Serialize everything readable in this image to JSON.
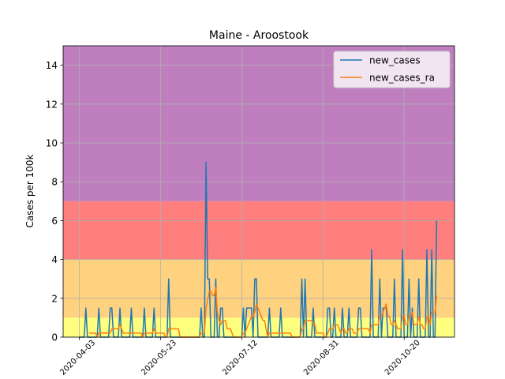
{
  "chart_data": {
    "type": "line",
    "title": "Maine - Aroostook",
    "ylabel": "Cases per 100k",
    "x": [
      "2020-04-03",
      "2020-04-04",
      "2020-04-05",
      "2020-04-06",
      "2020-04-07",
      "2020-04-08",
      "2020-04-09",
      "2020-04-10",
      "2020-04-11",
      "2020-04-12",
      "2020-04-13",
      "2020-04-14",
      "2020-04-15",
      "2020-04-16",
      "2020-04-17",
      "2020-04-18",
      "2020-04-19",
      "2020-04-20",
      "2020-04-21",
      "2020-04-22",
      "2020-04-23",
      "2020-04-24",
      "2020-04-25",
      "2020-04-26",
      "2020-04-27",
      "2020-04-28",
      "2020-04-29",
      "2020-04-30",
      "2020-05-01",
      "2020-05-02",
      "2020-05-03",
      "2020-05-04",
      "2020-05-05",
      "2020-05-06",
      "2020-05-07",
      "2020-05-08",
      "2020-05-09",
      "2020-05-10",
      "2020-05-11",
      "2020-05-12",
      "2020-05-13",
      "2020-05-14",
      "2020-05-15",
      "2020-05-16",
      "2020-05-17",
      "2020-05-18",
      "2020-05-19",
      "2020-05-20",
      "2020-05-21",
      "2020-05-22",
      "2020-05-23",
      "2020-05-24",
      "2020-05-25",
      "2020-05-26",
      "2020-05-27",
      "2020-05-28",
      "2020-05-29",
      "2020-05-30",
      "2020-05-31",
      "2020-06-01",
      "2020-06-02",
      "2020-06-03",
      "2020-06-04",
      "2020-06-05",
      "2020-06-06",
      "2020-06-07",
      "2020-06-08",
      "2020-06-09",
      "2020-06-10",
      "2020-06-11",
      "2020-06-12",
      "2020-06-13",
      "2020-06-14",
      "2020-06-15",
      "2020-06-16",
      "2020-06-17",
      "2020-06-18",
      "2020-06-19",
      "2020-06-20",
      "2020-06-21",
      "2020-06-22",
      "2020-06-23",
      "2020-06-24",
      "2020-06-25",
      "2020-06-26",
      "2020-06-27",
      "2020-06-28",
      "2020-06-29",
      "2020-06-30",
      "2020-07-01",
      "2020-07-02",
      "2020-07-03",
      "2020-07-04",
      "2020-07-05",
      "2020-07-06",
      "2020-07-07",
      "2020-07-08",
      "2020-07-09",
      "2020-07-10",
      "2020-07-11",
      "2020-07-12",
      "2020-07-13",
      "2020-07-14",
      "2020-07-15",
      "2020-07-16",
      "2020-07-17",
      "2020-07-18",
      "2020-07-19",
      "2020-07-20",
      "2020-07-21",
      "2020-07-22",
      "2020-07-23",
      "2020-07-24",
      "2020-07-25",
      "2020-07-26",
      "2020-07-27",
      "2020-07-28",
      "2020-07-29",
      "2020-07-30",
      "2020-07-31",
      "2020-08-01",
      "2020-08-02",
      "2020-08-03",
      "2020-08-04",
      "2020-08-05",
      "2020-08-06",
      "2020-08-07",
      "2020-08-08",
      "2020-08-09",
      "2020-08-10",
      "2020-08-11",
      "2020-08-12",
      "2020-08-13",
      "2020-08-14",
      "2020-08-15",
      "2020-08-16",
      "2020-08-17",
      "2020-08-18",
      "2020-08-19",
      "2020-08-20",
      "2020-08-21",
      "2020-08-22",
      "2020-08-23",
      "2020-08-24",
      "2020-08-25",
      "2020-08-26",
      "2020-08-27",
      "2020-08-28",
      "2020-08-29",
      "2020-08-30",
      "2020-08-31",
      "2020-09-01",
      "2020-09-02",
      "2020-09-03",
      "2020-09-04",
      "2020-09-05",
      "2020-09-06",
      "2020-09-07",
      "2020-09-08",
      "2020-09-09",
      "2020-09-10",
      "2020-09-11",
      "2020-09-12",
      "2020-09-13",
      "2020-09-14",
      "2020-09-15",
      "2020-09-16",
      "2020-09-17",
      "2020-09-18",
      "2020-09-19",
      "2020-09-20",
      "2020-09-21",
      "2020-09-22",
      "2020-09-23",
      "2020-09-24",
      "2020-09-25",
      "2020-09-26",
      "2020-09-27",
      "2020-09-28",
      "2020-09-29",
      "2020-09-30",
      "2020-10-01",
      "2020-10-02",
      "2020-10-03",
      "2020-10-04",
      "2020-10-05",
      "2020-10-06",
      "2020-10-07",
      "2020-10-08",
      "2020-10-09",
      "2020-10-10",
      "2020-10-11",
      "2020-10-12",
      "2020-10-13",
      "2020-10-14",
      "2020-10-15",
      "2020-10-16",
      "2020-10-17",
      "2020-10-18",
      "2020-10-19",
      "2020-10-20",
      "2020-10-21",
      "2020-10-22",
      "2020-10-23",
      "2020-10-24",
      "2020-10-25",
      "2020-10-26",
      "2020-10-27",
      "2020-10-28",
      "2020-10-29",
      "2020-10-30",
      "2020-10-31",
      "2020-11-01",
      "2020-11-02",
      "2020-11-03",
      "2020-11-04",
      "2020-11-05",
      "2020-11-06",
      "2020-11-07",
      "2020-11-08",
      "2020-11-09"
    ],
    "series": [
      {
        "name": "new_cases",
        "color": "#1f77b4",
        "values": [
          0,
          0,
          0,
          0,
          1.5,
          0,
          0,
          0,
          0,
          0,
          0,
          0,
          1.5,
          0,
          0,
          0,
          0,
          0,
          0,
          1.5,
          1.5,
          0,
          0,
          0,
          0,
          1.5,
          0,
          0,
          0,
          0,
          0,
          0,
          1.5,
          0,
          0,
          0,
          0,
          0,
          0,
          0,
          1.5,
          0,
          0,
          0,
          0,
          0,
          1.5,
          0,
          0,
          0,
          0,
          0,
          0,
          0,
          0,
          3,
          0,
          0,
          0,
          0,
          0,
          0,
          0,
          0,
          0,
          0,
          0,
          0,
          0,
          0,
          0,
          0,
          0,
          0,
          0,
          1.5,
          0,
          0,
          9,
          3,
          3,
          0,
          0,
          0,
          3,
          0,
          0,
          1.5,
          1.5,
          0,
          0,
          0,
          0,
          0,
          0,
          0,
          0,
          0,
          0,
          0,
          0,
          1.5,
          0,
          1.5,
          1.5,
          1.5,
          1.5,
          0,
          3,
          3,
          0,
          0,
          0,
          0,
          0,
          0,
          0,
          1.5,
          0,
          0,
          0,
          0,
          0,
          0,
          1.5,
          0,
          0,
          0,
          0,
          0,
          0,
          0,
          0,
          0,
          0,
          0,
          0,
          3,
          0,
          3,
          0,
          0,
          0,
          0,
          1.5,
          0,
          0,
          0,
          0,
          0,
          0,
          0,
          0,
          1.5,
          1.5,
          0,
          0,
          1.5,
          0,
          0,
          0,
          0,
          1.5,
          0,
          0,
          0,
          1.5,
          0,
          0,
          0,
          0,
          0,
          1.5,
          1.5,
          0,
          0,
          0,
          0,
          0,
          0,
          4.5,
          0,
          0,
          0,
          0,
          3,
          0,
          1.5,
          1.5,
          1.5,
          0,
          0,
          0,
          0,
          3,
          0,
          0,
          0,
          0,
          4.5,
          0,
          0,
          0,
          3,
          0,
          1.5,
          0,
          0,
          0,
          3,
          0,
          0,
          0,
          0,
          4.5,
          0,
          0,
          4.5,
          0,
          0,
          6
        ]
      },
      {
        "name": "new_cases_ra",
        "color": "#ff7f0e",
        "values": [
          null,
          null,
          null,
          null,
          null,
          null,
          0.21,
          0.21,
          0.21,
          0.21,
          0.21,
          0,
          0.21,
          0.21,
          0.21,
          0.21,
          0.21,
          0.21,
          0.21,
          0.21,
          0.43,
          0.43,
          0.43,
          0.43,
          0.43,
          0.64,
          0.43,
          0.21,
          0.21,
          0.21,
          0.21,
          0.21,
          0.21,
          0.21,
          0.21,
          0.21,
          0.21,
          0.21,
          0.21,
          0,
          0.21,
          0.21,
          0.21,
          0.21,
          0.21,
          0.21,
          0.43,
          0.21,
          0.21,
          0.21,
          0.21,
          0.21,
          0.21,
          0,
          0,
          0.43,
          0.43,
          0.43,
          0.43,
          0.43,
          0.43,
          0.43,
          0,
          0,
          0,
          0,
          0,
          0,
          0,
          0,
          0,
          0,
          0,
          0,
          0,
          0.21,
          0.21,
          0.21,
          1.5,
          1.93,
          2.36,
          2.36,
          2.14,
          2.14,
          2.57,
          1.29,
          0.86,
          0.64,
          0.86,
          0.86,
          0.86,
          0.43,
          0.43,
          0.43,
          0.21,
          0,
          0,
          0,
          0,
          0,
          0,
          0.21,
          0.21,
          0.43,
          0.64,
          0.86,
          1.07,
          1.07,
          1.29,
          1.71,
          1.5,
          1.29,
          1.07,
          0.86,
          0.86,
          0.43,
          0,
          0.21,
          0.21,
          0.21,
          0.21,
          0.21,
          0.21,
          0.21,
          0.21,
          0.21,
          0.21,
          0.21,
          0.21,
          0.21,
          0.21,
          0,
          0,
          0,
          0,
          0,
          0,
          0.43,
          0.43,
          0.86,
          0.86,
          0.86,
          0.86,
          0.86,
          0.64,
          0.64,
          0.21,
          0.21,
          0.21,
          0.21,
          0.21,
          0,
          0,
          0.21,
          0.43,
          0.43,
          0.43,
          0.64,
          0.64,
          0.64,
          0.43,
          0.21,
          0.43,
          0.43,
          0.21,
          0.21,
          0.43,
          0.43,
          0.43,
          0.21,
          0.21,
          0.21,
          0.43,
          0.43,
          0.43,
          0.43,
          0.43,
          0.43,
          0.43,
          0.21,
          0.64,
          0.64,
          0.64,
          0.64,
          0.64,
          1.07,
          1.07,
          1.29,
          1.5,
          1.71,
          1.07,
          1.07,
          0.64,
          0.64,
          0.86,
          0.64,
          0.43,
          0.43,
          0.43,
          1.07,
          1.07,
          0.64,
          0.64,
          1.07,
          1.07,
          1.29,
          0.64,
          0.64,
          0.64,
          1.07,
          0.64,
          0.64,
          0.43,
          0.43,
          1.07,
          1.07,
          0.64,
          1.29,
          1.29,
          1.29,
          2.14
        ]
      }
    ],
    "bands": [
      {
        "range": [
          0,
          1
        ],
        "color": "#ffff7f"
      },
      {
        "range": [
          1,
          4
        ],
        "color": "#ffd27f"
      },
      {
        "range": [
          4,
          7
        ],
        "color": "#ff7f7f"
      },
      {
        "range": [
          7,
          15
        ],
        "color": "#bf7fbf"
      }
    ],
    "xlim": [
      "2020-03-24",
      "2020-11-20"
    ],
    "xticks": [
      "2020-04-03",
      "2020-05-23",
      "2020-07-12",
      "2020-08-31",
      "2020-10-20"
    ],
    "ylim": [
      0,
      15
    ],
    "yticks": [
      0,
      2,
      4,
      6,
      8,
      10,
      12,
      14
    ],
    "grid": true,
    "legend": "upper right"
  }
}
